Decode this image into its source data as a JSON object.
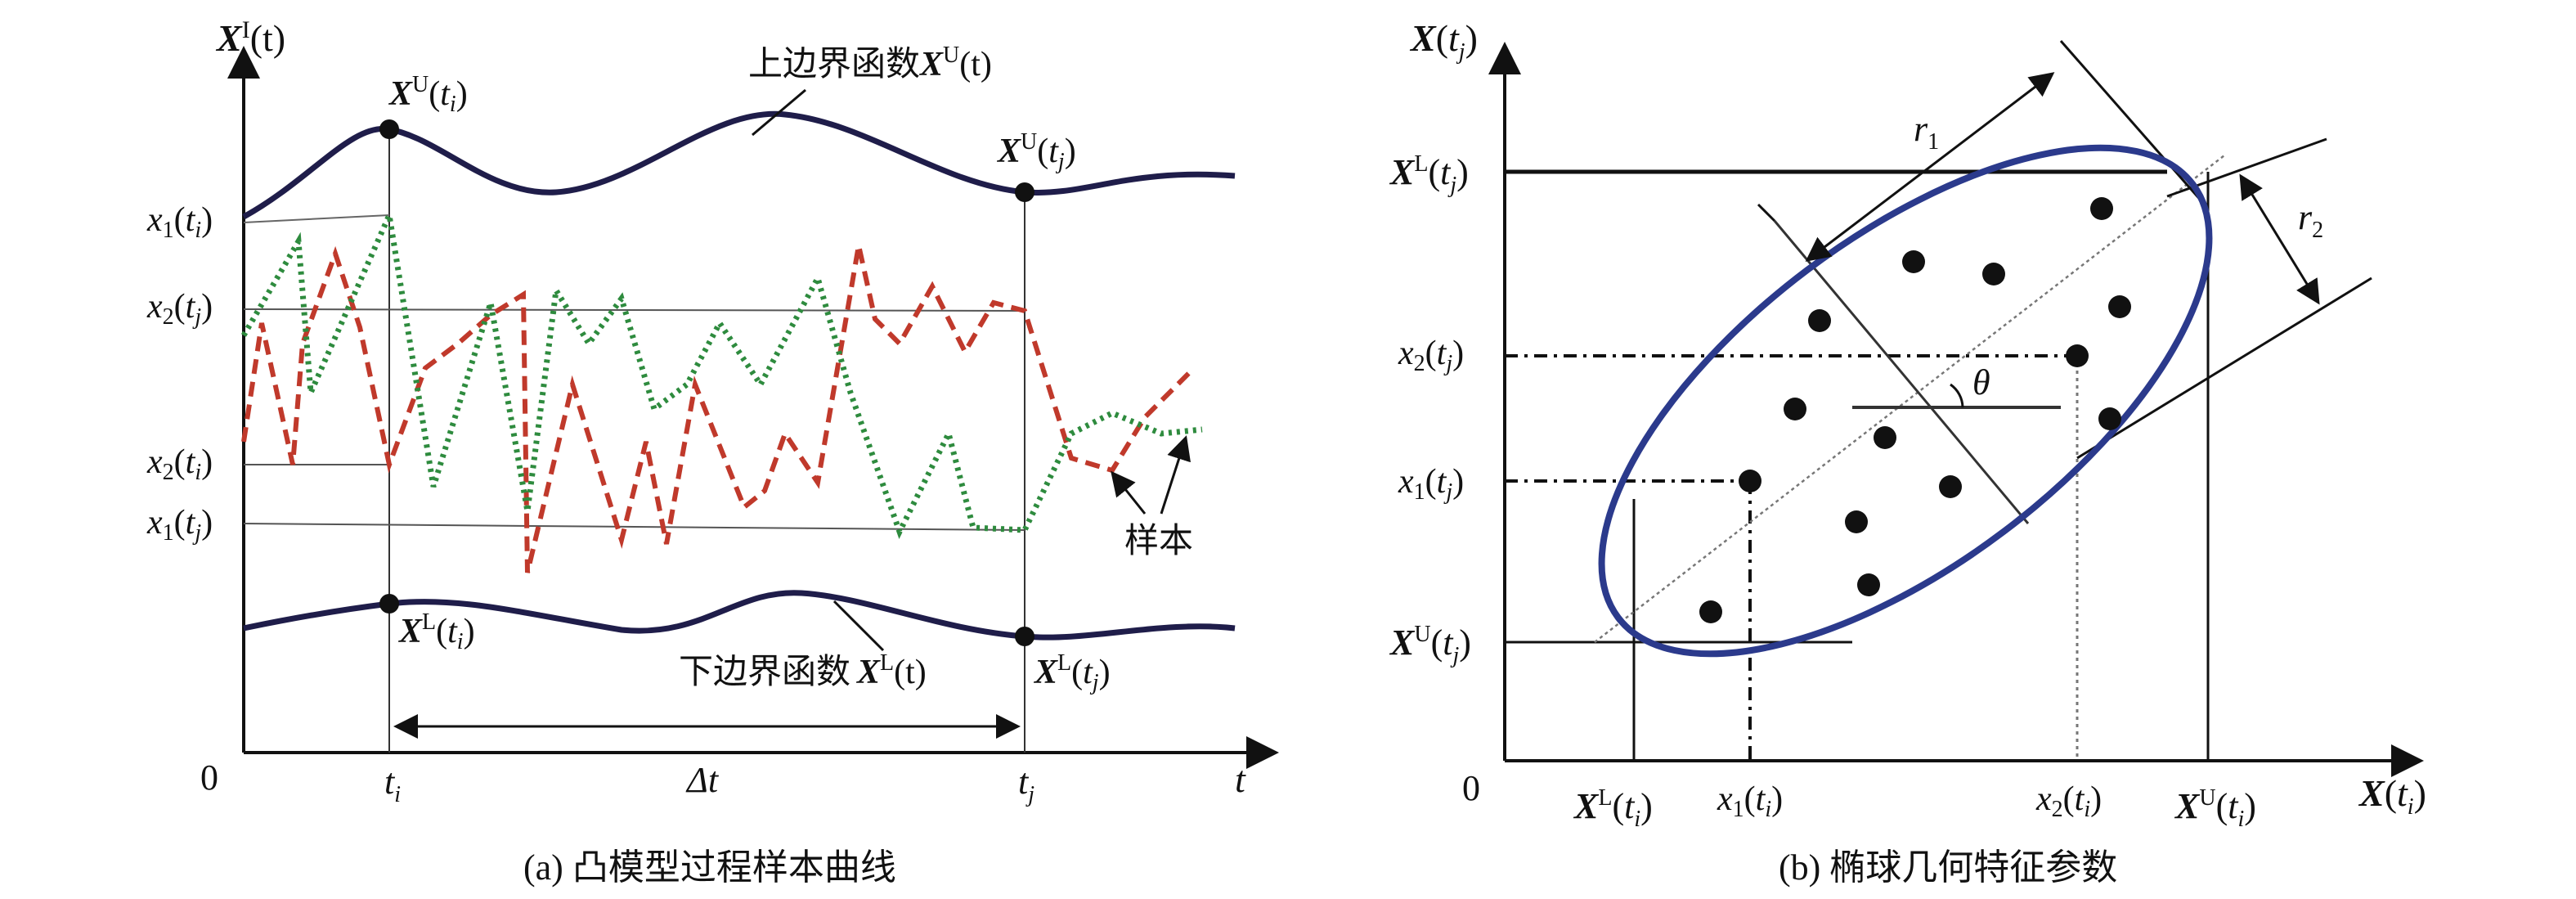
{
  "panel_a": {
    "caption": "(a) 凸模型过程样本曲线",
    "y_axis_label": {
      "base": "X",
      "sup": "I",
      "tail": "(t)"
    },
    "x_axis_label": "t",
    "origin": "0",
    "x_ticks": [
      {
        "base": "t",
        "sub": "i"
      },
      {
        "base": "Δt",
        "sub": ""
      },
      {
        "base": "t",
        "sub": "j"
      }
    ],
    "y_ticks": [
      {
        "base": "x",
        "num": "1",
        "arg": "t",
        "sub": "i"
      },
      {
        "base": "x",
        "num": "2",
        "arg": "t",
        "sub": "j"
      },
      {
        "base": "x",
        "num": "2",
        "arg": "t",
        "sub": "i"
      },
      {
        "base": "x",
        "num": "1",
        "arg": "t",
        "sub": "j"
      }
    ],
    "upper_label": {
      "text": "上边界函数",
      "base": "X",
      "sup": "U",
      "tail": "(t)"
    },
    "lower_label": {
      "text": "下边界函数",
      "base": "X",
      "sup": "L",
      "tail": "(t)"
    },
    "point_labels": {
      "upper_ti": {
        "base": "X",
        "sup": "U",
        "arg": "t",
        "sub": "i"
      },
      "upper_tj": {
        "base": "X",
        "sup": "U",
        "arg": "t",
        "sub": "j"
      },
      "lower_ti": {
        "base": "X",
        "sup": "L",
        "arg": "t",
        "sub": "i"
      },
      "lower_tj": {
        "base": "X",
        "sup": "L",
        "arg": "t",
        "sub": "j"
      }
    },
    "sample_label": "样本",
    "colors": {
      "boundary": "#1f1d4a",
      "sample_red": "#c0392b",
      "sample_green": "#2e8b3e"
    }
  },
  "panel_b": {
    "caption": "(b) 椭球几何特征参数",
    "y_axis_label": {
      "base": "X",
      "arg": "t",
      "sub": "j"
    },
    "x_axis_label": {
      "base": "X",
      "arg": "t",
      "sub": "i"
    },
    "origin": "0",
    "y_ticks": [
      {
        "kind": "bold",
        "base": "X",
        "sup": "L",
        "arg": "t",
        "sub": "j"
      },
      {
        "kind": "ital",
        "base": "x",
        "num": "2",
        "arg": "t",
        "sub": "j"
      },
      {
        "kind": "ital",
        "base": "x",
        "num": "1",
        "arg": "t",
        "sub": "j"
      },
      {
        "kind": "bold",
        "base": "X",
        "sup": "U",
        "arg": "t",
        "sub": "j"
      }
    ],
    "x_ticks": [
      {
        "kind": "bold",
        "base": "X",
        "sup": "L",
        "arg": "t",
        "sub": "i"
      },
      {
        "kind": "ital",
        "base": "x",
        "num": "1",
        "arg": "t",
        "sub": "i"
      },
      {
        "kind": "ital",
        "base": "x",
        "num": "2",
        "arg": "t",
        "sub": "i"
      },
      {
        "kind": "bold",
        "base": "X",
        "sup": "U",
        "arg": "t",
        "sub": "i"
      }
    ],
    "r1": {
      "base": "r",
      "sub": "1"
    },
    "r2": {
      "base": "r",
      "sub": "2"
    },
    "theta": "θ",
    "colors": {
      "ellipse": "#2b3a8c"
    }
  }
}
